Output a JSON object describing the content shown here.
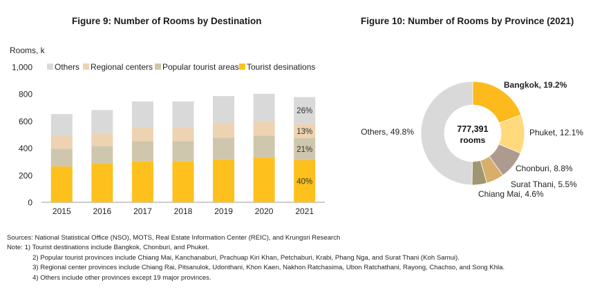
{
  "chart_data": [
    {
      "type": "bar",
      "stacked": true,
      "title": "Figure 9: Number of Rooms by Destination",
      "ylabel": "Rooms, k",
      "ylim": [
        0,
        1000
      ],
      "yticks": [
        "0",
        "200",
        "400",
        "600",
        "800",
        "1,000"
      ],
      "ytick_values": [
        0,
        200,
        400,
        600,
        800,
        1000
      ],
      "categories": [
        "2015",
        "2016",
        "2017",
        "2018",
        "2019",
        "2020",
        "2021"
      ],
      "legend_position": "top",
      "series": [
        {
          "name": "Tourist desinations",
          "color": "#FDC01D",
          "values": [
            265,
            285,
            305,
            305,
            318,
            330,
            313
          ]
        },
        {
          "name": "Popular tourist areas",
          "color": "#CFC7AD",
          "values": [
            130,
            132,
            148,
            148,
            160,
            162,
            162
          ]
        },
        {
          "name": "Regional centers",
          "color": "#EDD3B1",
          "values": [
            95,
            95,
            103,
            103,
            108,
            108,
            103
          ]
        },
        {
          "name": "Others",
          "color": "#D9D9D9",
          "values": [
            162,
            170,
            189,
            189,
            199,
            202,
            200
          ]
        }
      ],
      "legend_order": [
        "Others",
        "Regional centers",
        "Popular tourist areas",
        "Tourist desinations"
      ],
      "bar_labels_2021": [
        "40%",
        "21%",
        "13%",
        "26%"
      ]
    },
    {
      "type": "pie",
      "donut": true,
      "title": "Figure 10: Number of Rooms by Province (2021)",
      "center_value": "777,391",
      "center_unit": "rooms",
      "slices": [
        {
          "label": "Bangkok, 19.2%",
          "value": 19.2,
          "color": "#FDBA1C",
          "bold": true
        },
        {
          "label": "Phuket, 12.1%",
          "value": 12.1,
          "color": "#FFD97C"
        },
        {
          "label": "Chonburi, 8.8%",
          "value": 8.8,
          "color": "#AE9B8F"
        },
        {
          "label": "Surat Thani, 5.5%",
          "value": 5.5,
          "color": "#D8AE6A"
        },
        {
          "label": "Chiang Mai, 4.6%",
          "value": 4.6,
          "color": "#9E9772"
        },
        {
          "label": "Others, 49.8%",
          "value": 49.8,
          "color": "#D9D9D9"
        }
      ]
    }
  ],
  "notes": {
    "sources": "Sources: National Statistical Office (NSO), MOTS, Real Estate Information Center (REIC), and Krungsri Research",
    "note1": "Note: 1) Tourist destinations include Bangkok, Chonburi, and Phuket.",
    "note2": "2) Popular tourist provinces include Chiang Mai, Kanchanaburi, Prachuap Kiri Khan, Petchaburi, Krabi, Phang Nga, and Surat Thani  (Koh Samui).",
    "note3": "3) Regional center provinces include Chiang Rai, Pitsanulok, Udonthani, Khon Kaen, Nakhon Ratchasima, Ubon Ratchathani, Rayong, Chachso, and Song Khla.",
    "note4": "4) Others include other provinces except 19 major provinces."
  }
}
